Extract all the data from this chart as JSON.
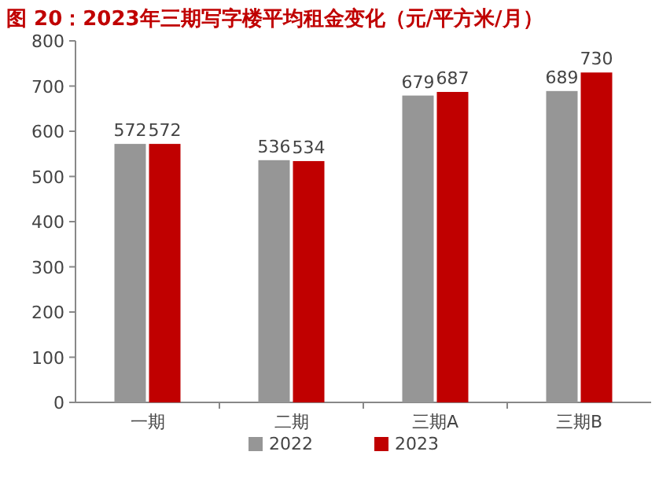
{
  "chart_data": {
    "type": "bar",
    "title": "图 20：2023年三期写字楼平均租金变化（元/平方米/月）",
    "categories": [
      "一期",
      "二期",
      "三期A",
      "三期B"
    ],
    "series": [
      {
        "name": "2022",
        "color": "#969696",
        "values": [
          572,
          536,
          679,
          689
        ]
      },
      {
        "name": "2023",
        "color": "#c00000",
        "values": [
          572,
          534,
          687,
          730
        ]
      }
    ],
    "ylim": [
      0,
      800
    ],
    "yticks": [
      0,
      100,
      200,
      300,
      400,
      500,
      600,
      700,
      800
    ],
    "data_labels": true,
    "legend": "bottom"
  }
}
